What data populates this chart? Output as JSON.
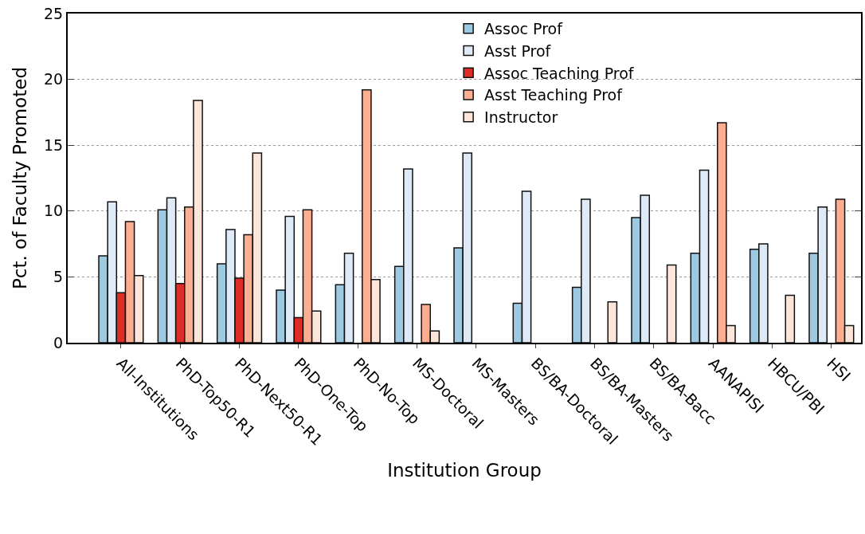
{
  "chart_data": {
    "type": "bar",
    "xlabel": "Institution Group",
    "ylabel": "Pct. of Faculty Promoted",
    "categories": [
      "All-Institutions",
      "PhD-Top50-R1",
      "PhD-Next50-R1",
      "PhD-One-Top",
      "PhD-No-Top",
      "MS-Doctoral",
      "MS-Masters",
      "BS/BA-Doctoral",
      "BS/BA-Masters",
      "BS/BA-Bacc",
      "AANAPISI",
      "HBCU/PBI",
      "HSI"
    ],
    "series": [
      {
        "name": "Assoc Prof",
        "color": "#9ecae1",
        "values": [
          6.6,
          10.1,
          6.0,
          4.0,
          4.4,
          5.8,
          7.2,
          3.0,
          4.2,
          9.5,
          6.8,
          7.1,
          6.8
        ]
      },
      {
        "name": "Asst Prof",
        "color": "#deebf7",
        "values": [
          10.7,
          11.0,
          8.6,
          9.6,
          6.8,
          13.2,
          14.4,
          11.5,
          10.9,
          11.2,
          13.1,
          7.5,
          10.3
        ]
      },
      {
        "name": "Assoc Teaching Prof",
        "color": "#de2d26",
        "values": [
          3.8,
          4.5,
          4.9,
          1.9,
          null,
          null,
          null,
          null,
          null,
          null,
          null,
          null,
          null
        ]
      },
      {
        "name": "Asst Teaching Prof",
        "color": "#fcae91",
        "values": [
          9.2,
          10.3,
          8.2,
          10.1,
          19.2,
          2.9,
          null,
          null,
          null,
          null,
          16.7,
          null,
          10.9
        ]
      },
      {
        "name": "Instructor",
        "color": "#fee5d9",
        "values": [
          5.1,
          18.4,
          14.4,
          2.4,
          4.8,
          0.9,
          null,
          null,
          3.1,
          5.9,
          1.3,
          3.6,
          1.3
        ]
      }
    ],
    "ylim": [
      0,
      25
    ],
    "yticks": [
      0,
      5,
      10,
      15,
      20,
      25
    ],
    "grid": "y",
    "legend": "top right"
  }
}
